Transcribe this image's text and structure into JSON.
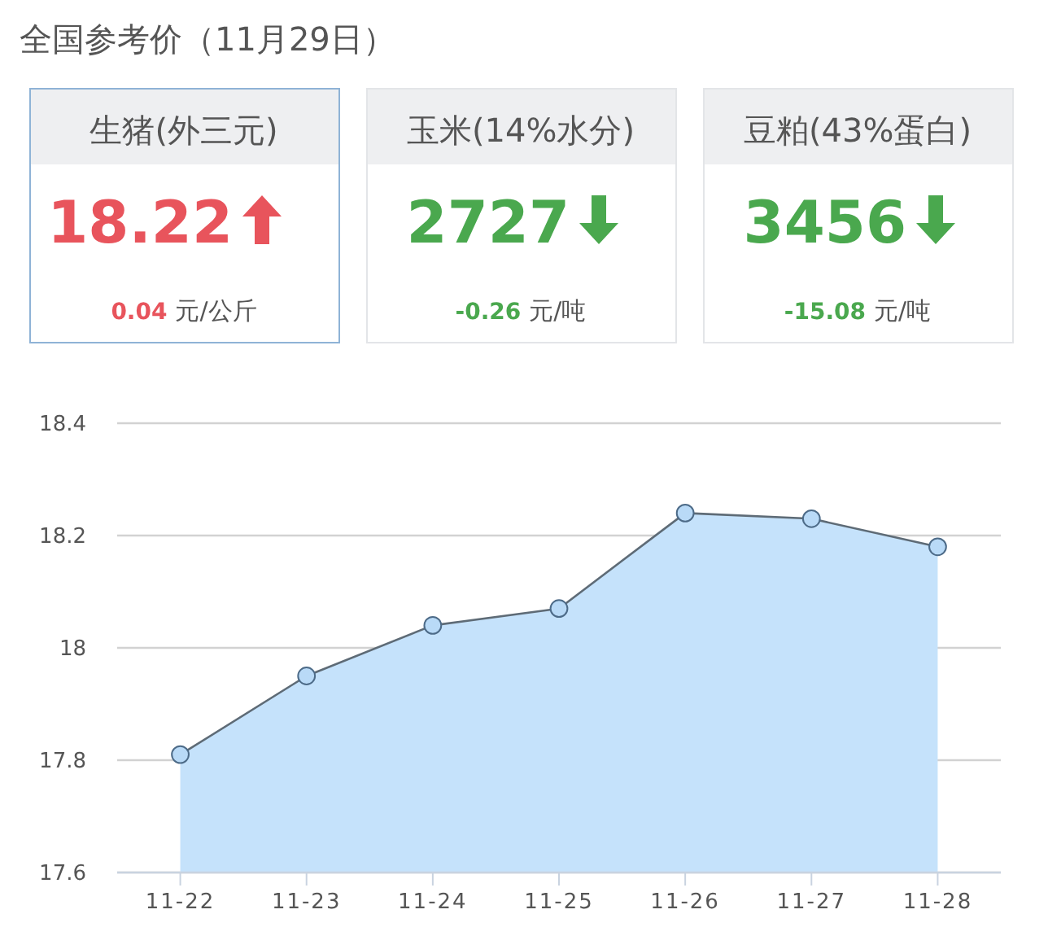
{
  "chart_data": [
    {
      "type": "other",
      "title": "全国参考价（11月29日）",
      "categories": [
        "生猪(外三元)",
        "玉米(14%水分)",
        "豆粕(43%蛋白)"
      ],
      "series": [
        {
          "values": [
            18.22,
            2727,
            3456
          ]
        },
        {
          "values": [
            0.04,
            -0.26,
            -15.08
          ]
        }
      ],
      "colors": [
        "#e8545c",
        "#4aa84e",
        "#4aa84e"
      ],
      "annotations": [
        "元/公斤",
        "元/吨",
        "元/吨"
      ],
      "data_labels": true
    },
    {
      "type": "area",
      "categories": [
        "11-22",
        "11-23",
        "11-24",
        "11-25",
        "11-26",
        "11-27",
        "11-28"
      ],
      "values": [
        17.81,
        17.95,
        18.04,
        18.07,
        18.24,
        18.23,
        18.18
      ],
      "color": "#c5e2fb",
      "ylim": [
        17.6,
        18.4
      ],
      "yticks": [
        17.6,
        17.8,
        18,
        18.2,
        18.4
      ],
      "grid": "y",
      "marker": "circle"
    }
  ]
}
